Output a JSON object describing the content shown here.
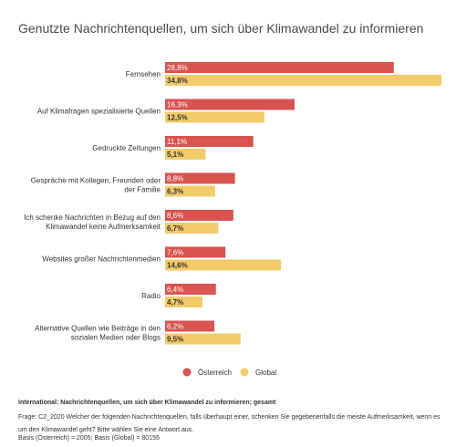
{
  "chart_data": {
    "type": "bar",
    "orientation": "horizontal",
    "title": "Genutzte Nachrichtenquellen, um sich über Klimawandel zu informieren",
    "categories": [
      [
        "Fernsehen"
      ],
      [
        "Auf Klimafragen spezialisierte Quellen"
      ],
      [
        "Gedruckte Zeitungen"
      ],
      [
        "Gespräche mit Kollegen, Freunden oder",
        "der Familie"
      ],
      [
        "Ich schenke Nachrichten in Bezug auf den",
        "Klimawandel keine Aufmerksamkeit"
      ],
      [
        "Websites großer Nachrichtenmedien"
      ],
      [
        "Radio"
      ],
      [
        "Alternative Quellen wie Beiträge in den",
        "sozialen Medien oder Blogs"
      ]
    ],
    "series": [
      {
        "name": "Österreich",
        "color": "#d9534f",
        "values": [
          28.8,
          16.3,
          11.1,
          8.8,
          8.6,
          7.6,
          6.4,
          6.2
        ],
        "labels": [
          "28,8%",
          "16,3%",
          "11,1%",
          "8,8%",
          "8,6%",
          "7,6%",
          "6,4%",
          "6,2%"
        ]
      },
      {
        "name": "Global",
        "color": "#f2cc6b",
        "values": [
          34.8,
          12.5,
          5.1,
          6.3,
          6.7,
          14.6,
          4.7,
          9.5
        ],
        "labels": [
          "34,8%",
          "12,5%",
          "5,1%",
          "6,3%",
          "6,7%",
          "14,6%",
          "4,7%",
          "9,5%"
        ]
      }
    ],
    "xlim": [
      0,
      34.8
    ],
    "grid": false,
    "legend_position": "bottom"
  },
  "footer": {
    "heading": "International: Nachrichtenquellen, um sich über Klimawandel zu informieren; gesamt",
    "question": "Frage: C2_2020 Welcher der folgenden Nachrichtenquellen, falls überhaupt einer, schenken Sie gegebenenfalls die meiste Aufmerksamkeit, wenn es um den Klimawandel geht? Bitte wählen Sie eine Antwort aus.",
    "base": "Basis (Österreich) = 2005; Basis (Global) = 80155"
  }
}
